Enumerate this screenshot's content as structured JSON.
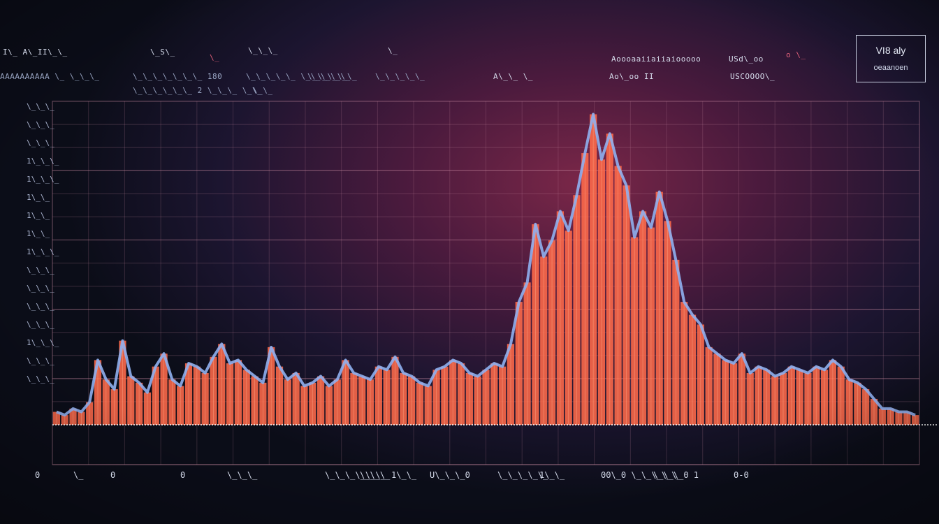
{
  "header": {
    "row1": [
      "I\\_ A\\_II\\_\\_",
      "\\_S\\_",
      "\\_",
      "",
      "\\_\\_\\_",
      "\\_",
      "Aoooaaiiaiiaiooooo",
      "USd\\_oo",
      "o \\_"
    ],
    "row2": [
      "AAAAAAAAAA \\_ \\_\\_\\_",
      "\\_\\_\\_\\_\\_\\_\\_ 180",
      "\\_\\_\\_\\_\\_ \\_\\_\\_\\_\\_",
      "\\_\\_\\_\\_\\_",
      "\\_\\_\\_\\_\\_",
      "A\\_\\_ \\_",
      "Ao\\_oo II",
      "USCOOOO\\_"
    ],
    "row3": [
      "\\_\\_\\_\\_\\_\\_ 2 \\_\\_\\_ \\_\\_",
      "\\_\\_"
    ]
  },
  "legend": {
    "line1": "VI8 aly",
    "line2": "oeaanoen"
  },
  "colors": {
    "bar": "#ff6a4a",
    "outline": "#8fb0f0",
    "grid": "#c98aa0",
    "baseline": "#ffffff",
    "accent": "#e0607a"
  },
  "chart_data": {
    "type": "bar",
    "title": "",
    "xlabel": "",
    "ylabel": "",
    "ylim": [
      0,
      100
    ],
    "values": [
      4,
      3,
      5,
      4,
      7,
      20,
      14,
      11,
      26,
      15,
      13,
      10,
      18,
      22,
      14,
      12,
      19,
      18,
      16,
      21,
      25,
      19,
      20,
      17,
      15,
      13,
      24,
      18,
      14,
      16,
      12,
      13,
      15,
      12,
      14,
      20,
      16,
      15,
      14,
      18,
      17,
      21,
      16,
      15,
      13,
      12,
      17,
      18,
      20,
      19,
      16,
      15,
      17,
      19,
      18,
      25,
      38,
      44,
      62,
      52,
      57,
      66,
      60,
      71,
      84,
      96,
      82,
      90,
      80,
      74,
      58,
      66,
      61,
      72,
      63,
      51,
      38,
      34,
      31,
      24,
      22,
      20,
      19,
      22,
      16,
      18,
      17,
      15,
      16,
      18,
      17,
      16,
      18,
      17,
      20,
      18,
      14,
      13,
      11,
      8,
      5,
      5,
      4,
      4,
      3
    ],
    "xticks": [
      "0",
      "\\_",
      "0",
      "0",
      "\\_\\_\\_",
      "\\_\\_\\_\\_\\_\\_",
      "\\_\\_\\_",
      "1\\_\\_",
      "U\\_\\_\\_0",
      "\\_\\_\\_\\_\\_",
      "1\\_\\_",
      "00\\_0 \\_\\_\\_\\_\\_",
      "\\_\\_\\_0 1",
      "0-0"
    ],
    "yticks": [
      "\\_\\_\\_",
      "\\_\\_\\_",
      "\\_\\_\\_",
      "1\\_\\_\\_",
      "1\\_\\_\\_",
      "1\\_\\_",
      "1\\_\\_",
      "1\\_\\_",
      "1\\_\\_\\_",
      "\\_\\_\\_",
      "\\_\\_\\_",
      "\\_\\_\\_",
      "\\_\\_\\_",
      "1\\_\\_\\_",
      "\\_\\_\\_",
      "\\_\\_\\_"
    ]
  }
}
